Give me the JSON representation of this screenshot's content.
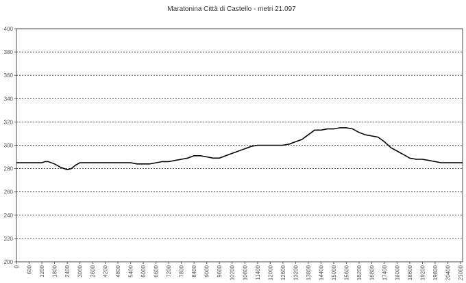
{
  "chart_data": {
    "type": "line",
    "title": "Maratonina Città di Castello - metri 21.097",
    "xlabel": "",
    "ylabel": "",
    "ylim": [
      200,
      400
    ],
    "yticks": [
      200,
      220,
      240,
      260,
      280,
      300,
      320,
      340,
      360,
      380,
      400
    ],
    "xlim": [
      0,
      21097
    ],
    "xticks": [
      0,
      600,
      1200,
      1800,
      2400,
      3000,
      3600,
      4200,
      4800,
      5400,
      6000,
      6600,
      7200,
      7800,
      8400,
      9000,
      9600,
      10200,
      10800,
      11400,
      12000,
      12600,
      13200,
      13800,
      14400,
      15000,
      15600,
      16200,
      16800,
      17400,
      18000,
      18600,
      19200,
      19800,
      20400,
      21000
    ],
    "grid": true,
    "legend": "none",
    "series": [
      {
        "color": "#000000",
        "x": [
          0,
          300,
          600,
          900,
          1200,
          1350,
          1500,
          1800,
          2100,
          2400,
          2600,
          2800,
          3000,
          3300,
          3600,
          4200,
          4800,
          5400,
          5700,
          6000,
          6300,
          6600,
          6900,
          7200,
          7500,
          7800,
          8100,
          8400,
          8700,
          9000,
          9300,
          9600,
          9900,
          10200,
          10500,
          10800,
          11100,
          11400,
          11700,
          12000,
          12300,
          12600,
          12900,
          13200,
          13500,
          13800,
          14100,
          14400,
          14700,
          15000,
          15300,
          15600,
          15900,
          16200,
          16500,
          16800,
          17100,
          17400,
          17700,
          18000,
          18300,
          18600,
          18900,
          19200,
          19500,
          19800,
          20100,
          20400,
          20700,
          21097
        ],
        "values": [
          285,
          285,
          285,
          285,
          285,
          286,
          286,
          284,
          281,
          279,
          280,
          283,
          285,
          285,
          285,
          285,
          285,
          285,
          284,
          284,
          284,
          285,
          286,
          286,
          287,
          288,
          289,
          291,
          291,
          290,
          289,
          289,
          291,
          293,
          295,
          297,
          299,
          300,
          300,
          300,
          300,
          300,
          301,
          303,
          305,
          309,
          313,
          313,
          314,
          314,
          315,
          315,
          314,
          311,
          309,
          308,
          307,
          303,
          298,
          295,
          292,
          289,
          288,
          288,
          287,
          286,
          285,
          285,
          285,
          285
        ]
      }
    ]
  }
}
